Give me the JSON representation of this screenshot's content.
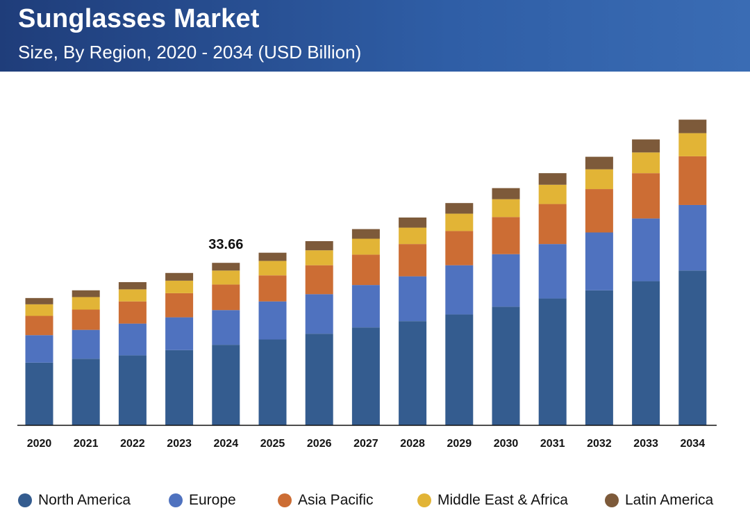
{
  "header": {
    "title": "Sunglasses Market",
    "subtitle": "Size, By Region, 2020 - 2034 (USD Billion)"
  },
  "chart_data": {
    "type": "bar",
    "stacked": true,
    "title": "Sunglasses Market",
    "subtitle": "Size, By Region, 2020 - 2034 (USD Billion)",
    "xlabel": "",
    "ylabel": "",
    "ylim": [
      0,
      64
    ],
    "grid": false,
    "categories": [
      "2020",
      "2021",
      "2022",
      "2023",
      "2024",
      "2025",
      "2026",
      "2027",
      "2028",
      "2029",
      "2030",
      "2031",
      "2032",
      "2033",
      "2034"
    ],
    "series": [
      {
        "name": "North America",
        "color": "#345c8f",
        "values": [
          13.0,
          13.8,
          14.5,
          15.6,
          16.7,
          17.8,
          19.0,
          20.3,
          21.6,
          23.0,
          24.6,
          26.3,
          28.0,
          29.9,
          32.1
        ]
      },
      {
        "name": "Europe",
        "color": "#4f72bf",
        "values": [
          5.7,
          6.0,
          6.6,
          6.8,
          7.2,
          7.9,
          8.2,
          8.8,
          9.3,
          10.2,
          10.9,
          11.3,
          12.0,
          13.0,
          13.6
        ]
      },
      {
        "name": "Asia Pacific",
        "color": "#cc6d34",
        "values": [
          4.0,
          4.2,
          4.6,
          5.0,
          5.3,
          5.4,
          6.0,
          6.3,
          6.7,
          7.1,
          7.7,
          8.3,
          9.0,
          9.4,
          10.1
        ]
      },
      {
        "name": "Middle East & Africa",
        "color": "#e2b436",
        "values": [
          2.4,
          2.6,
          2.5,
          2.6,
          2.9,
          3.0,
          3.1,
          3.3,
          3.4,
          3.6,
          3.7,
          4.0,
          4.1,
          4.3,
          4.8
        ]
      },
      {
        "name": "Latin America",
        "color": "#7d5a3a",
        "values": [
          1.3,
          1.4,
          1.5,
          1.6,
          1.6,
          1.7,
          1.9,
          2.0,
          2.1,
          2.2,
          2.3,
          2.4,
          2.6,
          2.7,
          2.8
        ]
      }
    ],
    "annotations": [
      {
        "category": "2024",
        "text": "33.66"
      }
    ],
    "legend": "bottom"
  }
}
